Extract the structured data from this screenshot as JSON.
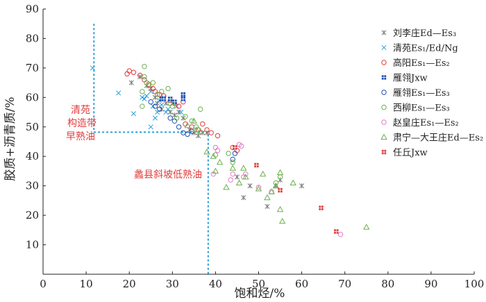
{
  "chart_data": {
    "type": "scatter",
    "title": "",
    "xlabel": "饱和烃/%",
    "ylabel": "胶质+沥青质/%",
    "xlim": [
      0,
      100
    ],
    "ylim": [
      0,
      90
    ],
    "xticks": [
      "0",
      "10",
      "20",
      "30",
      "40",
      "50",
      "60",
      "70",
      "80",
      "90",
      "100"
    ],
    "yticks": [
      "10",
      "20",
      "30",
      "40",
      "50",
      "60",
      "70",
      "80",
      "90"
    ],
    "legend_position": "right",
    "annotations": {
      "qingyuan": [
        "清苑",
        "构造带",
        "早熟油"
      ],
      "lixian": "蠡县斜坡低熟油"
    },
    "divider_lines": [
      {
        "points": [
          [
            11.8,
            85
          ],
          [
            11.8,
            48.2
          ],
          [
            38.3,
            48.2
          ],
          [
            38.3,
            0
          ]
        ],
        "color": "#2a9fd6"
      }
    ],
    "series": [
      {
        "name": "刘李庄Ed—Es₃",
        "marker": "star",
        "color": "#777777",
        "points": [
          [
            20.5,
            65
          ],
          [
            22.5,
            67
          ],
          [
            24,
            64
          ],
          [
            25,
            63
          ],
          [
            26,
            60
          ],
          [
            26.5,
            58
          ],
          [
            27.5,
            56
          ],
          [
            28.5,
            58
          ],
          [
            29.5,
            55
          ],
          [
            30.5,
            54
          ],
          [
            31.5,
            55
          ],
          [
            32.5,
            53
          ],
          [
            34,
            49
          ],
          [
            35,
            48
          ],
          [
            36,
            47
          ],
          [
            37,
            48
          ],
          [
            38,
            48
          ],
          [
            45,
            33
          ],
          [
            46.5,
            26
          ],
          [
            48,
            30
          ],
          [
            52,
            23
          ],
          [
            54,
            30
          ],
          [
            55,
            32
          ],
          [
            60,
            30
          ]
        ]
      },
      {
        "name": "清苑Es₁/Ed/Ng",
        "marker": "x",
        "color": "#2a9fd6",
        "points": [
          [
            11.5,
            70
          ],
          [
            17.5,
            61.5
          ],
          [
            21,
            54.5
          ],
          [
            23,
            60
          ],
          [
            23.5,
            59.5
          ],
          [
            24,
            60.5
          ],
          [
            25,
            62
          ],
          [
            25.5,
            57
          ],
          [
            25,
            50
          ],
          [
            26,
            53
          ],
          [
            26.5,
            55
          ],
          [
            27,
            59
          ],
          [
            27.5,
            57.5
          ],
          [
            28,
            60
          ],
          [
            28.5,
            55
          ],
          [
            29,
            56
          ],
          [
            30,
            58
          ],
          [
            31,
            57
          ],
          [
            32,
            55
          ]
        ]
      },
      {
        "name": "高阳Es₁—Es₂",
        "marker": "circle",
        "color": "#e03c3c",
        "points": [
          [
            19.5,
            68
          ],
          [
            20,
            69
          ],
          [
            21,
            68.5
          ],
          [
            22.5,
            67.5
          ],
          [
            23.5,
            66
          ],
          [
            24.5,
            64.5
          ],
          [
            25.5,
            63
          ],
          [
            26,
            62
          ],
          [
            27,
            61
          ],
          [
            28,
            60.5
          ],
          [
            29.5,
            59
          ],
          [
            30.5,
            58
          ],
          [
            31.5,
            57
          ],
          [
            32.5,
            58.5
          ],
          [
            33,
            51
          ],
          [
            34.5,
            50
          ],
          [
            36,
            49
          ],
          [
            37,
            51
          ],
          [
            38,
            49
          ],
          [
            39,
            48
          ],
          [
            40.5,
            47
          ],
          [
            44,
            43
          ],
          [
            45,
            42
          ]
        ]
      },
      {
        "name": "雁翎Jxw",
        "marker": "square",
        "color": "#1f4fb5",
        "points": [
          [
            27.5,
            59.5
          ],
          [
            28,
            59.5
          ],
          [
            29.5,
            59.5
          ],
          [
            30.5,
            58.5
          ],
          [
            32.5,
            61
          ],
          [
            32.5,
            59.5
          ]
        ]
      },
      {
        "name": "雁翎Es₁—Es₃",
        "marker": "circle",
        "color": "#1f4fb5",
        "points": [
          [
            25,
            58.5
          ],
          [
            26,
            57
          ],
          [
            27,
            56
          ],
          [
            29.5,
            53
          ],
          [
            30.5,
            52
          ],
          [
            31.5,
            50
          ],
          [
            32.5,
            48
          ],
          [
            33.5,
            47.5
          ],
          [
            34.5,
            48.5
          ],
          [
            44,
            39
          ],
          [
            44.5,
            41
          ]
        ]
      },
      {
        "name": "西柳Es₁—Es₃",
        "marker": "circle",
        "color": "#6ab04c",
        "points": [
          [
            23.5,
            70.5
          ],
          [
            23.5,
            67
          ],
          [
            24,
            65
          ],
          [
            23,
            62
          ],
          [
            23,
            57
          ],
          [
            24.5,
            64
          ],
          [
            25.5,
            65
          ],
          [
            26.5,
            61
          ],
          [
            27.5,
            62
          ],
          [
            29,
            63
          ],
          [
            29.5,
            58
          ],
          [
            30,
            57
          ],
          [
            31,
            53
          ],
          [
            33,
            53.5
          ],
          [
            34.5,
            52
          ],
          [
            35.5,
            50
          ],
          [
            36.5,
            56
          ],
          [
            40,
            40.5
          ],
          [
            43,
            41
          ],
          [
            44,
            38
          ],
          [
            54,
            31
          ],
          [
            55,
            33
          ]
        ]
      },
      {
        "name": "赵皇庄Es₁—Es₂",
        "marker": "circle",
        "color": "#e37ac9",
        "points": [
          [
            39.5,
            34
          ],
          [
            40,
            43
          ],
          [
            40.5,
            42
          ],
          [
            43.5,
            32
          ],
          [
            44,
            34
          ],
          [
            45.5,
            44
          ],
          [
            46,
            43.5
          ],
          [
            46.5,
            33
          ],
          [
            47,
            34
          ],
          [
            50,
            29.5
          ],
          [
            53,
            28
          ],
          [
            69,
            13.5
          ]
        ]
      },
      {
        "name": "肃宁—大王庄Ed—Es₂",
        "marker": "triangle",
        "color": "#6ab04c",
        "points": [
          [
            33.5,
            50.5
          ],
          [
            35,
            52
          ],
          [
            35.5,
            49
          ],
          [
            36.5,
            48.5
          ],
          [
            38,
            41.5
          ],
          [
            39.5,
            40
          ],
          [
            40,
            35
          ],
          [
            41,
            38
          ],
          [
            42.5,
            29.5
          ],
          [
            44,
            36
          ],
          [
            45.5,
            31
          ],
          [
            46.5,
            36
          ],
          [
            47,
            33
          ],
          [
            50,
            29
          ],
          [
            51,
            34
          ],
          [
            52,
            26
          ],
          [
            53,
            28
          ],
          [
            54,
            30
          ],
          [
            55,
            34.5
          ],
          [
            55,
            22
          ],
          [
            55.5,
            18
          ],
          [
            58,
            31
          ],
          [
            75,
            16
          ]
        ]
      },
      {
        "name": "任丘Jxw",
        "marker": "square",
        "color": "#e03c3c",
        "points": [
          [
            44.5,
            43
          ],
          [
            49.5,
            37
          ],
          [
            55,
            28.5
          ],
          [
            64.5,
            22.5
          ],
          [
            68,
            14.5
          ]
        ]
      }
    ]
  }
}
